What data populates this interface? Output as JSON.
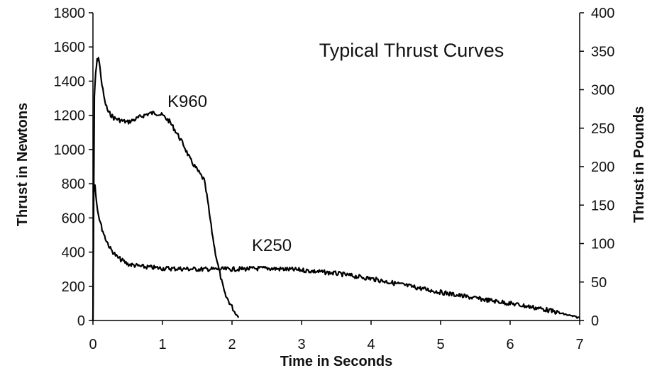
{
  "chart_data": {
    "type": "line",
    "title": "Typical Thrust Curves",
    "xlabel": "Time in Seconds",
    "ylabel": "Thrust in Newtons",
    "y2label": "Thrust in Pounds",
    "xlim": [
      0,
      7
    ],
    "ylim": [
      0,
      1800
    ],
    "y2lim": [
      0,
      400
    ],
    "xticks": [
      "0",
      "1",
      "2",
      "3",
      "4",
      "5",
      "6",
      "7"
    ],
    "yticks": [
      "0",
      "200",
      "400",
      "600",
      "800",
      "1000",
      "1200",
      "1400",
      "1600",
      "1800"
    ],
    "y2ticks": [
      "0",
      "50",
      "100",
      "150",
      "200",
      "250",
      "300",
      "350",
      "400"
    ],
    "grid": false,
    "line_color": "#000000",
    "series": [
      {
        "name": "K960",
        "x": [
          0,
          0.02,
          0.04,
          0.06,
          0.08,
          0.1,
          0.13,
          0.17,
          0.22,
          0.3,
          0.4,
          0.5,
          0.6,
          0.7,
          0.8,
          0.9,
          1.0,
          1.1,
          1.2,
          1.3,
          1.4,
          1.5,
          1.6,
          1.65,
          1.7,
          1.75,
          1.8,
          1.85,
          1.9,
          2.0,
          2.05,
          2.1
        ],
        "y": [
          0,
          1300,
          1450,
          1520,
          1540,
          1480,
          1380,
          1280,
          1220,
          1185,
          1170,
          1160,
          1175,
          1195,
          1210,
          1215,
          1200,
          1165,
          1100,
          1030,
          940,
          880,
          820,
          700,
          550,
          420,
          320,
          230,
          150,
          80,
          40,
          20
        ]
      },
      {
        "name": "K250",
        "x": [
          0,
          0.01,
          0.03,
          0.05,
          0.08,
          0.12,
          0.18,
          0.25,
          0.35,
          0.5,
          0.7,
          1.0,
          1.5,
          2.0,
          2.5,
          3.0,
          3.5,
          4.0,
          4.5,
          5.0,
          5.5,
          6.0,
          6.5,
          6.8,
          7.0
        ],
        "y": [
          0,
          750,
          800,
          700,
          620,
          550,
          480,
          420,
          370,
          330,
          315,
          305,
          300,
          300,
          305,
          295,
          275,
          245,
          205,
          165,
          130,
          100,
          65,
          35,
          15
        ]
      }
    ]
  }
}
